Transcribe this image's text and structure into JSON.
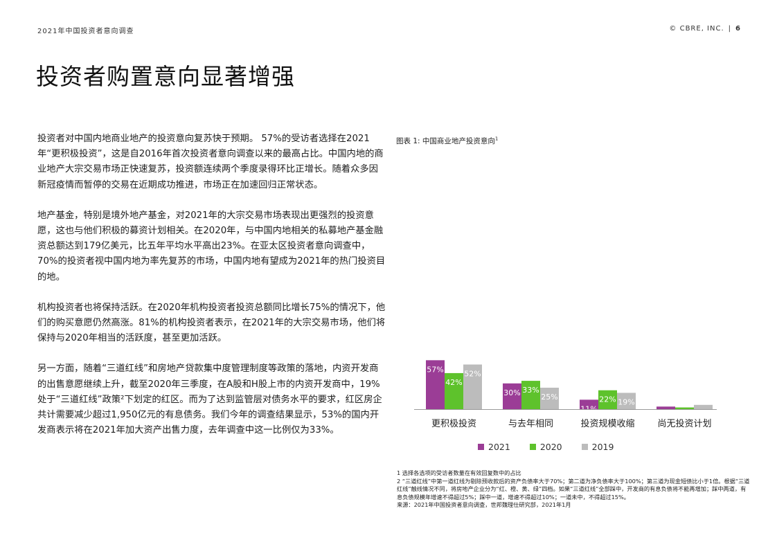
{
  "header": {
    "report_name": "2021年中国投资者意向调查",
    "copyright": "© CBRE, INC.",
    "separator": "|",
    "page_number": "6"
  },
  "title": "投资者购置意向显著增强",
  "paragraphs": [
    "投资者对中国内地商业地产的投资意向复苏快于预期。 57%的受访者选择在2021年“更积极投资”，这是自2016年首次投资者意向调查以来的最高占比。中国内地的商业地产大宗交易市场正快速复苏，投资额连续两个季度录得环比正增长。随着众多因新冠疫情而暂停的交易在近期成功推进，市场正在加速回归正常状态。",
    "地产基金，特别是境外地产基金，对2021年的大宗交易市场表现出更强烈的投资意愿，这也与他们积极的募资计划相关。在2020年，与中国内地相关的私募地产基金融资总额达到179亿美元，比五年平均水平高出23%。在亚太区投资者意向调查中，70%的投资者视中国内地为率先复苏的市场，中国内地有望成为2021年的热门投资目的地。",
    "机构投资者也将保持活跃。在2020年机构投资者投资总额同比增长75%的情况下，他们的购买意愿仍然高涨。81%的机构投资者表示，在2021年的大宗交易市场，他们将保持与2020年相当的活跃度，甚至更加活跃。",
    "另一方面，随着“三道红线”和房地产贷款集中度管理制度等政策的落地，内资开发商的出售意愿继续上升，截至2020年三季度，在A股和H股上市的内资开发商中，19%处于“三道红线”政策²下划定的红区。而为了达到监管层对债务水平的要求，红区房企共计需要减少超过1,950亿元的有息债务。我们今年的调查结果显示，53%的国内开发商表示将在2021年加大资产出售力度，去年调查中这一比例仅为33%。"
  ],
  "chart_title": "图表 1:  中国商业地产投资意向",
  "chart_title_sup": "1",
  "chart_data": {
    "type": "bar",
    "title": "图表 1:  中国商业地产投资意向",
    "categories": [
      "更积极投资",
      "与去年相同",
      "投资规模收缩",
      "尚无投资计划"
    ],
    "series": [
      {
        "name": "2021",
        "color": "#9b3d96",
        "values": [
          57,
          30,
          11,
          3
        ]
      },
      {
        "name": "2020",
        "color": "#5ec22c",
        "values": [
          42,
          33,
          22,
          2
        ]
      },
      {
        "name": "2019",
        "color": "#bcbcbc",
        "values": [
          52,
          25,
          19,
          5
        ]
      }
    ],
    "value_suffix": "%",
    "ylim": [
      0,
      60
    ],
    "grid": false,
    "legend_position": "bottom"
  },
  "footnotes": [
    "1 选择各选项的受访者数量在有效回复数中的占比",
    "2 “三道红线”中第一道红线为剔除预收款后的资产负债率大于70%；第二道为净负债率大于100%；第三道为现金短债比小于1倍。根据“三道红线”触线情况不同，将房地产企业分为“红、橙、黄、绿”四档。如果“三道红线”全部踩中，开发商的有息负债将不能再增加；踩中两道，有息负债规模年增速不得超过5%；踩中一道，增速不得超过10%；一道未中，不得超过15%。",
    "来源：2021年中国投资者意向调查，世邦魏理仕研究部，2021年1月"
  ]
}
